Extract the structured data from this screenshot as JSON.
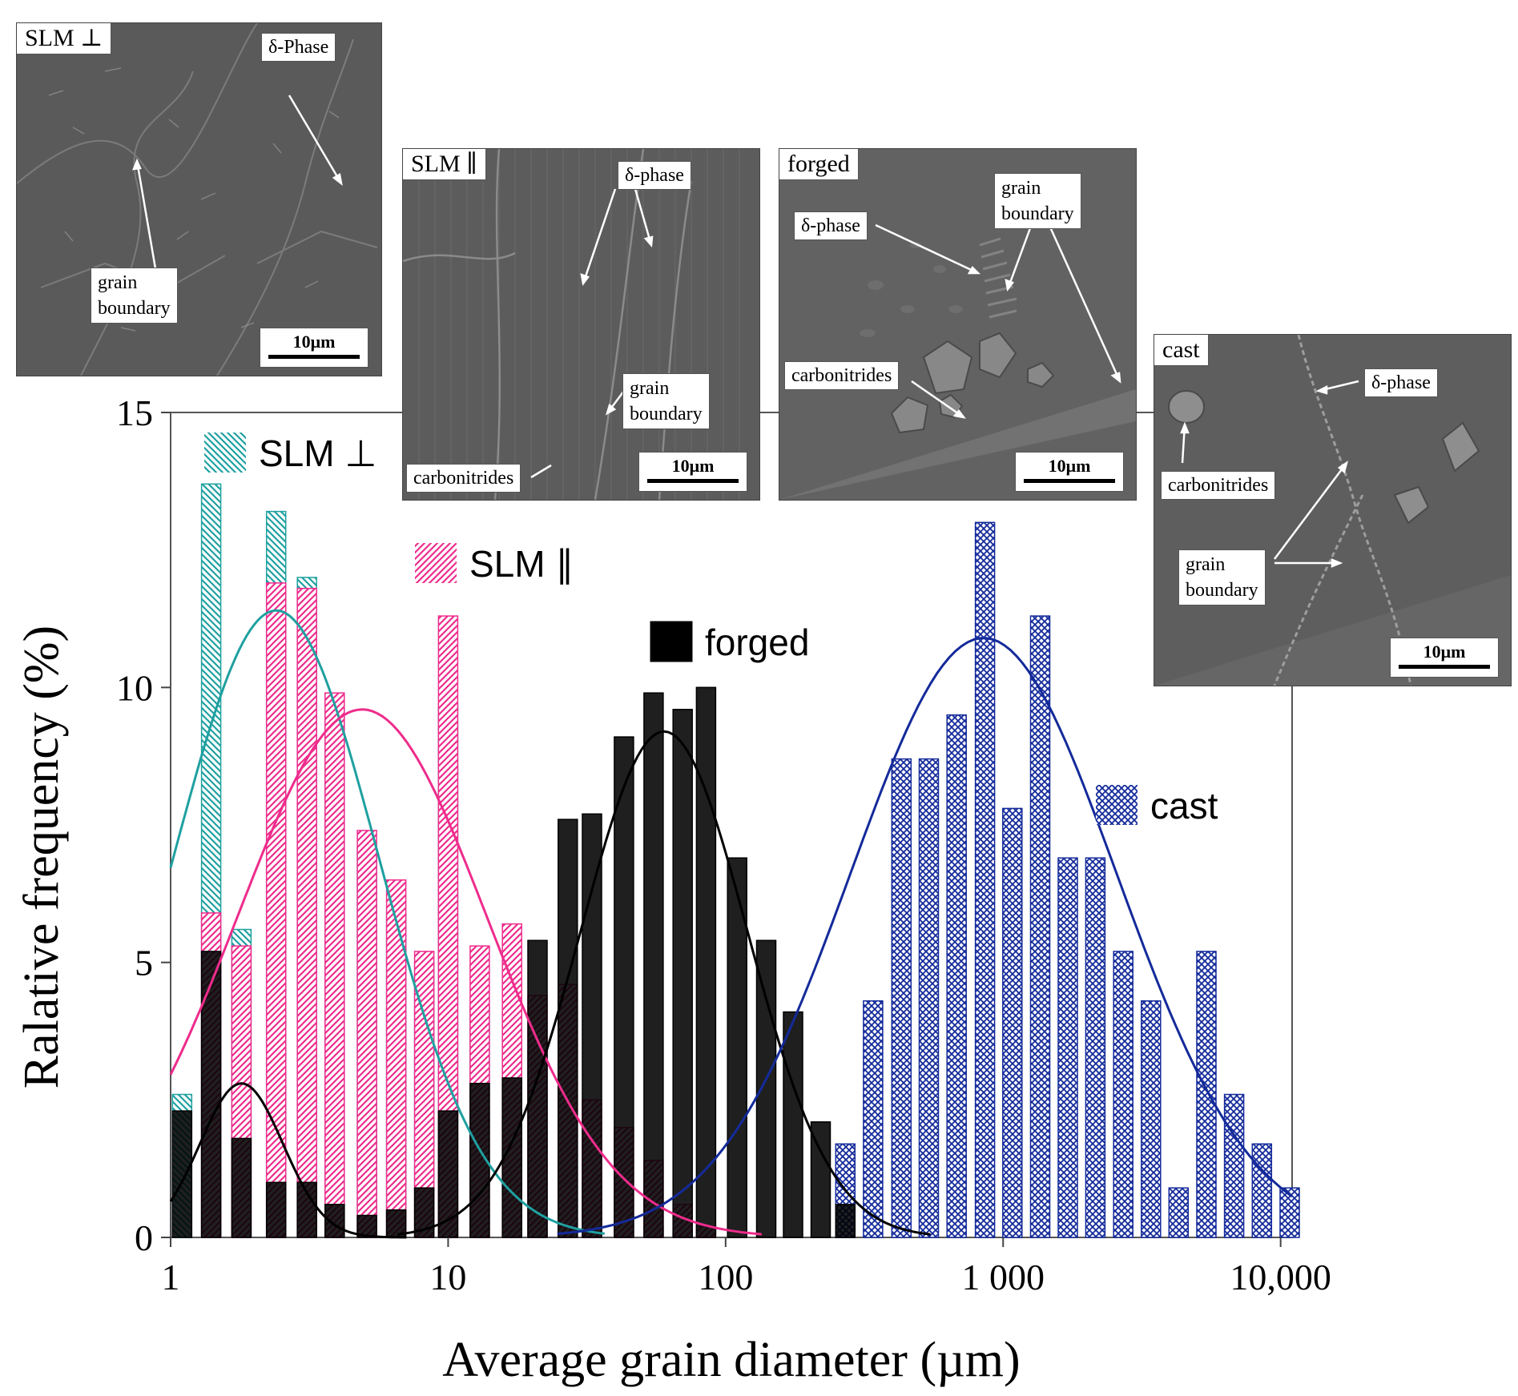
{
  "chart_data": {
    "type": "bar",
    "xscale": "log",
    "xlim": [
      1,
      11000
    ],
    "ylim": [
      0,
      15
    ],
    "xlabel": "Average grain diameter (µm)",
    "ylabel": "Ralative frequency (%)",
    "x_ticks": [
      {
        "value": 1,
        "label": "1"
      },
      {
        "value": 10,
        "label": "10"
      },
      {
        "value": 100,
        "label": "100"
      },
      {
        "value": 1000,
        "label": "1 000"
      },
      {
        "value": 10000,
        "label": "10,000"
      }
    ],
    "y_ticks": [
      {
        "value": 0,
        "label": "0"
      },
      {
        "value": 5,
        "label": "5"
      },
      {
        "value": 10,
        "label": "10"
      },
      {
        "value": 15,
        "label": "15"
      }
    ],
    "legend_position": "inline, near each distribution",
    "series": [
      {
        "name": "SLM ⊥",
        "color": "#1fa0a0",
        "pattern": "diagonal hatch",
        "x": [
          1.1,
          1.4,
          1.8,
          2.4,
          3.1,
          3.9,
          5.1,
          6.5,
          8.2,
          10,
          13,
          17,
          21,
          27,
          33,
          43,
          55,
          70
        ],
        "values": [
          2.6,
          13.7,
          5.6,
          13.2,
          12.0,
          9.6,
          7.1,
          5.9,
          5.0,
          9.7,
          4.2,
          4.1,
          3.4,
          2.2,
          1.0,
          0.4,
          0.2,
          0.1
        ],
        "fit": {
          "peak_x": 2.4,
          "peak_y": 11.4,
          "sigma_log": 0.37
        }
      },
      {
        "name": "SLM ∥",
        "color": "#ee2c8c",
        "pattern": "diagonal hatch",
        "x": [
          1.4,
          1.8,
          2.4,
          3.1,
          3.9,
          5.1,
          6.5,
          8.2,
          10,
          13,
          17,
          21,
          27,
          33,
          43,
          55,
          70,
          85
        ],
        "values": [
          5.9,
          5.3,
          11.9,
          11.8,
          9.9,
          7.4,
          6.5,
          5.2,
          11.3,
          5.3,
          5.7,
          4.4,
          4.6,
          2.5,
          2.0,
          1.4,
          0.6,
          0.2
        ],
        "fit": {
          "peak_x": 4.9,
          "peak_y": 9.6,
          "sigma_log": 0.45
        }
      },
      {
        "name": "forged",
        "color": "#000000",
        "pattern": "solid",
        "x": [
          1.1,
          1.4,
          1.8,
          2.4,
          3.1,
          3.9,
          5.1,
          6.5,
          8.2,
          10,
          13,
          17,
          21,
          27,
          33,
          43,
          55,
          70,
          85,
          110,
          140,
          175,
          220,
          270
        ],
        "values": [
          2.3,
          5.2,
          1.8,
          1.0,
          1.0,
          0.6,
          0.4,
          0.5,
          0.9,
          2.3,
          2.8,
          2.9,
          5.4,
          7.6,
          7.7,
          9.1,
          9.9,
          9.6,
          10.0,
          6.9,
          5.4,
          4.1,
          2.1,
          0.6
        ],
        "fit": {
          "peak_x": 60,
          "peak_y": 9.2,
          "sigma_log": 0.3
        }
      },
      {
        "name": "cast",
        "color": "#142a9a",
        "pattern": "crosshatch",
        "x": [
          270,
          340,
          430,
          540,
          680,
          860,
          1080,
          1360,
          1710,
          2150,
          2710,
          3410,
          4290,
          5400,
          6800,
          8560,
          10780
        ],
        "values": [
          1.7,
          4.3,
          8.7,
          8.7,
          9.5,
          13.0,
          7.8,
          11.3,
          6.9,
          6.9,
          5.2,
          4.3,
          0.9,
          5.2,
          2.6,
          1.7,
          0.9
        ],
        "fit": {
          "peak_x": 850,
          "peak_y": 10.9,
          "sigma_log": 0.48
        }
      }
    ]
  },
  "micrographs": {
    "slm_perp": {
      "title": "SLM ⊥",
      "labels": {
        "delta": "δ-Phase",
        "gb_line1": "grain",
        "gb_line2": "boundary"
      },
      "scale": "10μm"
    },
    "slm_par": {
      "title": "SLM ∥",
      "labels": {
        "delta": "δ-phase",
        "gb_line1": "grain",
        "gb_line2": "boundary",
        "carbo": "carbonitrides"
      },
      "scale": "10μm"
    },
    "forged": {
      "title": "forged",
      "labels": {
        "delta": "δ-phase",
        "gb_line1": "grain",
        "gb_line2": "boundary",
        "carbo": "carbonitrides"
      },
      "scale": "10μm"
    },
    "cast": {
      "title": "cast",
      "labels": {
        "delta": "δ-phase",
        "carbo": "carbonitrides",
        "gb_line1": "grain",
        "gb_line2": "boundary"
      },
      "scale": "10μm"
    }
  }
}
